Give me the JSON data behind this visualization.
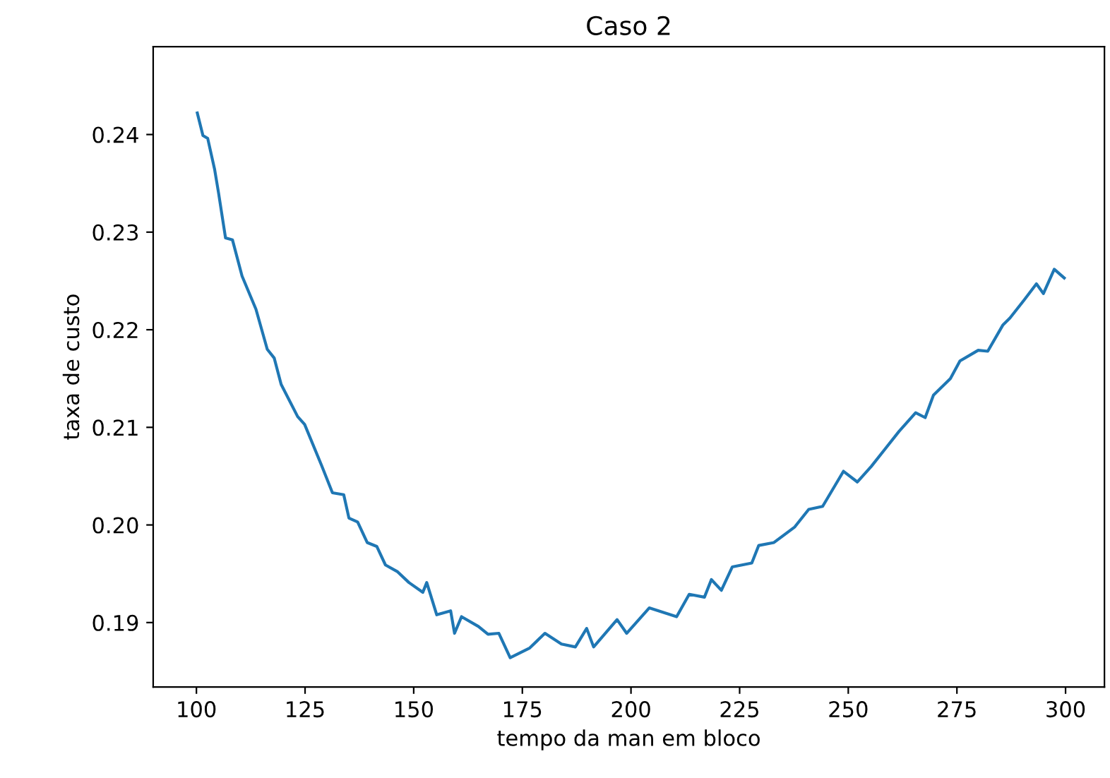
{
  "chart_data": {
    "type": "line",
    "title": "Caso 2",
    "xlabel": "tempo da man em bloco",
    "ylabel": "taxa de custo",
    "xlim": [
      90.05,
      308.95
    ],
    "ylim": [
      0.1834,
      0.249
    ],
    "xticks": [
      100,
      125,
      150,
      175,
      200,
      225,
      250,
      275,
      300
    ],
    "yticks": [
      {
        "value": 0.19,
        "label": "0.19"
      },
      {
        "value": 0.2,
        "label": "0.20"
      },
      {
        "value": 0.21,
        "label": "0.21"
      },
      {
        "value": 0.22,
        "label": "0.22"
      },
      {
        "value": 0.23,
        "label": "0.23"
      },
      {
        "value": 0.24,
        "label": "0.24"
      }
    ],
    "grid": false,
    "series": [
      {
        "color": "#1f77b4",
        "x": [
          100.2,
          101.5,
          102.6,
          104.2,
          105.1,
          106.7,
          108.3,
          110.5,
          113.7,
          116.3,
          117.9,
          119.5,
          123.3,
          124.9,
          128.8,
          131.3,
          133.9,
          135.1,
          137.1,
          139.3,
          141.5,
          143.5,
          146.3,
          148.9,
          152.1,
          153.0,
          155.3,
          158.5,
          159.4,
          161.0,
          164.9,
          167.1,
          169.6,
          172.2,
          176.7,
          180.2,
          184.0,
          187.2,
          189.8,
          191.4,
          196.8,
          199.0,
          204.2,
          210.5,
          213.4,
          216.9,
          218.5,
          220.8,
          223.3,
          227.8,
          229.4,
          232.9,
          237.7,
          240.9,
          244.1,
          248.9,
          252.1,
          255.3,
          258.5,
          261.7,
          265.5,
          267.7,
          269.6,
          273.5,
          275.7,
          279.9,
          282.1,
          285.6,
          287.2,
          290.4,
          293.3,
          294.9,
          297.4,
          299.7
        ],
        "values": [
          0.2422,
          0.2399,
          0.2396,
          0.2364,
          0.234,
          0.2294,
          0.2292,
          0.2255,
          0.2221,
          0.218,
          0.2171,
          0.2144,
          0.2111,
          0.2103,
          0.2061,
          0.2033,
          0.2031,
          0.2007,
          0.2003,
          0.1982,
          0.1978,
          0.1959,
          0.1952,
          0.1941,
          0.1931,
          0.1941,
          0.1908,
          0.1912,
          0.1889,
          0.1906,
          0.1896,
          0.1888,
          0.1889,
          0.1864,
          0.1874,
          0.1889,
          0.1878,
          0.1875,
          0.1894,
          0.1875,
          0.1903,
          0.1889,
          0.1915,
          0.1906,
          0.1929,
          0.1926,
          0.1944,
          0.1933,
          0.1957,
          0.1961,
          0.1979,
          0.1982,
          0.1998,
          0.2016,
          0.2019,
          0.2055,
          0.2044,
          0.206,
          0.2078,
          0.2096,
          0.2115,
          0.211,
          0.2133,
          0.215,
          0.2168,
          0.2179,
          0.2178,
          0.2205,
          0.2212,
          0.223,
          0.2247,
          0.2237,
          0.2262,
          0.2253
        ]
      }
    ]
  }
}
